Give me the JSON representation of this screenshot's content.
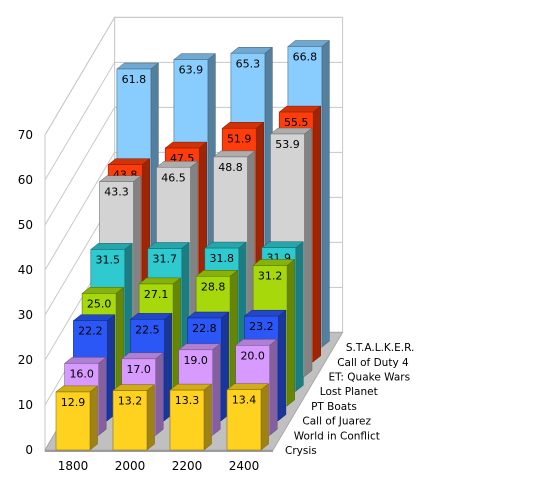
{
  "chart_data": {
    "type": "bar",
    "title": "",
    "xlabel": "",
    "ylabel": "",
    "ylim": [
      0,
      70
    ],
    "yticks": [
      0,
      10,
      20,
      30,
      40,
      50,
      60,
      70
    ],
    "grid": true,
    "categories": [
      "1800",
      "2000",
      "2200",
      "2400"
    ],
    "series": [
      {
        "name": "Crysis",
        "values": [
          12.9,
          13.2,
          13.3,
          13.4
        ],
        "color": "#ffd21f"
      },
      {
        "name": "World in Conflict",
        "values": [
          16.0,
          17.0,
          19.0,
          20.0
        ],
        "color": "#d79bff"
      },
      {
        "name": "Call of Juarez",
        "values": [
          22.2,
          22.5,
          22.8,
          23.2
        ],
        "color": "#2a57f5"
      },
      {
        "name": "PT Boats",
        "values": [
          25.0,
          27.1,
          28.8,
          31.2
        ],
        "color": "#a6d80c"
      },
      {
        "name": "Lost Planet",
        "values": [
          31.5,
          31.7,
          31.8,
          31.9
        ],
        "color": "#2ecad0"
      },
      {
        "name": "ET: Quake Wars",
        "values": [
          43.3,
          46.5,
          48.8,
          53.9
        ],
        "color": "#d3d3d3"
      },
      {
        "name": "Call of Duty  4",
        "values": [
          43.8,
          47.5,
          51.9,
          55.5
        ],
        "color": "#ff3d0a"
      },
      {
        "name": "S.T.A.L.K.E.R.",
        "values": [
          61.8,
          63.9,
          65.3,
          66.8
        ],
        "color": "#88cdfd"
      }
    ],
    "value_labels": [
      [
        "12.9",
        "13.2",
        "13.3",
        "13.4"
      ],
      [
        "16.0",
        "17.0",
        "19.0",
        "20.0"
      ],
      [
        "22.2",
        "22.5",
        "22.8",
        "23.2"
      ],
      [
        "25.0",
        "27.1",
        "28.8",
        "31.2"
      ],
      [
        "31.5",
        "31.7",
        "31.8",
        "31.9"
      ],
      [
        "43.3",
        "46.5",
        "48.8",
        "53.9"
      ],
      [
        "43.8",
        "47.5",
        "51.9",
        "55.5"
      ],
      [
        "61.8",
        "63.9",
        "65.3",
        "66.8"
      ]
    ]
  }
}
